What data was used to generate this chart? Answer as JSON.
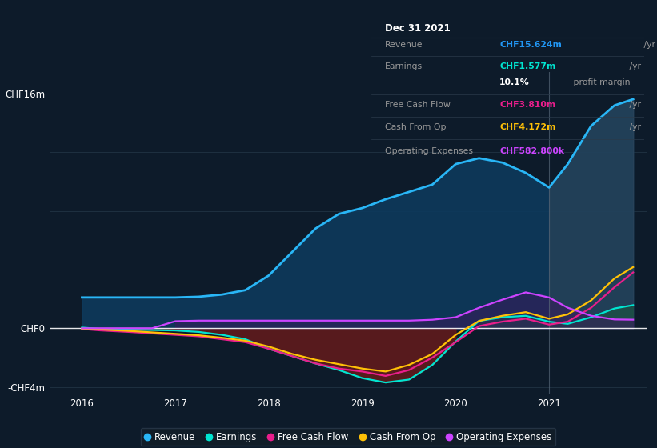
{
  "background_color": "#0d1b2a",
  "plot_bg_color": "#0d1b2a",
  "info_box": {
    "date": "Dec 31 2021",
    "rows": [
      {
        "label": "Revenue",
        "value": "CHF15.624m",
        "unit": " /yr",
        "value_color": "#2196f3"
      },
      {
        "label": "Earnings",
        "value": "CHF1.577m",
        "unit": " /yr",
        "value_color": "#00e5d1"
      },
      {
        "label": "",
        "value": "10.1%",
        "unit": " profit margin",
        "value_color": "#ffffff"
      },
      {
        "label": "Free Cash Flow",
        "value": "CHF3.810m",
        "unit": " /yr",
        "value_color": "#e91e8c"
      },
      {
        "label": "Cash From Op",
        "value": "CHF4.172m",
        "unit": " /yr",
        "value_color": "#ffc107"
      },
      {
        "label": "Operating Expenses",
        "value": "CHF582.800k",
        "unit": " /yr",
        "value_color": "#cc44ff"
      }
    ]
  },
  "ylim": [
    -4.5,
    17.5
  ],
  "ytick_positions": [
    -4,
    0,
    16
  ],
  "ytick_labels": [
    "-CHF4m",
    "CHF0",
    "CHF16m"
  ],
  "xlim": [
    2015.65,
    2022.05
  ],
  "xticks": [
    2016,
    2017,
    2018,
    2019,
    2020,
    2021
  ],
  "years": [
    2016.0,
    2016.2,
    2016.5,
    2016.75,
    2017.0,
    2017.25,
    2017.5,
    2017.75,
    2018.0,
    2018.25,
    2018.5,
    2018.75,
    2019.0,
    2019.25,
    2019.5,
    2019.75,
    2020.0,
    2020.25,
    2020.5,
    2020.75,
    2021.0,
    2021.2,
    2021.45,
    2021.7,
    2021.9
  ],
  "revenue": [
    2.1,
    2.1,
    2.1,
    2.1,
    2.1,
    2.15,
    2.3,
    2.6,
    3.6,
    5.2,
    6.8,
    7.8,
    8.2,
    8.8,
    9.3,
    9.8,
    11.2,
    11.6,
    11.3,
    10.6,
    9.6,
    11.2,
    13.8,
    15.2,
    15.624
  ],
  "earnings": [
    0.05,
    -0.05,
    -0.1,
    -0.12,
    -0.15,
    -0.25,
    -0.45,
    -0.75,
    -1.4,
    -1.9,
    -2.4,
    -2.85,
    -3.4,
    -3.7,
    -3.5,
    -2.5,
    -0.9,
    0.5,
    0.75,
    0.85,
    0.45,
    0.3,
    0.75,
    1.35,
    1.577
  ],
  "free_cash_flow": [
    -0.05,
    -0.15,
    -0.25,
    -0.35,
    -0.45,
    -0.55,
    -0.75,
    -0.95,
    -1.4,
    -1.9,
    -2.4,
    -2.75,
    -2.95,
    -3.25,
    -2.85,
    -2.0,
    -0.95,
    0.15,
    0.45,
    0.65,
    0.25,
    0.45,
    1.4,
    2.8,
    3.81
  ],
  "cash_from_op": [
    -0.02,
    -0.08,
    -0.18,
    -0.28,
    -0.38,
    -0.48,
    -0.65,
    -0.85,
    -1.25,
    -1.75,
    -2.15,
    -2.45,
    -2.75,
    -2.95,
    -2.5,
    -1.75,
    -0.45,
    0.5,
    0.85,
    1.1,
    0.65,
    0.95,
    1.9,
    3.4,
    4.172
  ],
  "op_expenses": [
    0.0,
    0.0,
    0.0,
    0.0,
    0.48,
    0.52,
    0.52,
    0.52,
    0.52,
    0.52,
    0.52,
    0.52,
    0.52,
    0.52,
    0.52,
    0.58,
    0.75,
    1.4,
    1.95,
    2.45,
    2.1,
    1.4,
    0.85,
    0.6,
    0.5833
  ],
  "revenue_color": "#29b6f6",
  "revenue_fill": "#0d3a5c",
  "earnings_color": "#00e5d1",
  "earnings_fill_neg": "#6b1a1a",
  "earnings_fill_pos": "#1a5a3a",
  "fcf_color": "#e91e8c",
  "cop_color": "#ffc107",
  "opex_color": "#cc44ff",
  "opex_fill": "#3a1a5c",
  "gray_fill": "#3a4a5a",
  "grid_color": "#1e3040",
  "zero_line_color": "#ffffff",
  "vline_color": "#556677",
  "legend_items": [
    "Revenue",
    "Earnings",
    "Free Cash Flow",
    "Cash From Op",
    "Operating Expenses"
  ],
  "legend_colors": [
    "#29b6f6",
    "#00e5d1",
    "#e91e8c",
    "#ffc107",
    "#cc44ff"
  ]
}
